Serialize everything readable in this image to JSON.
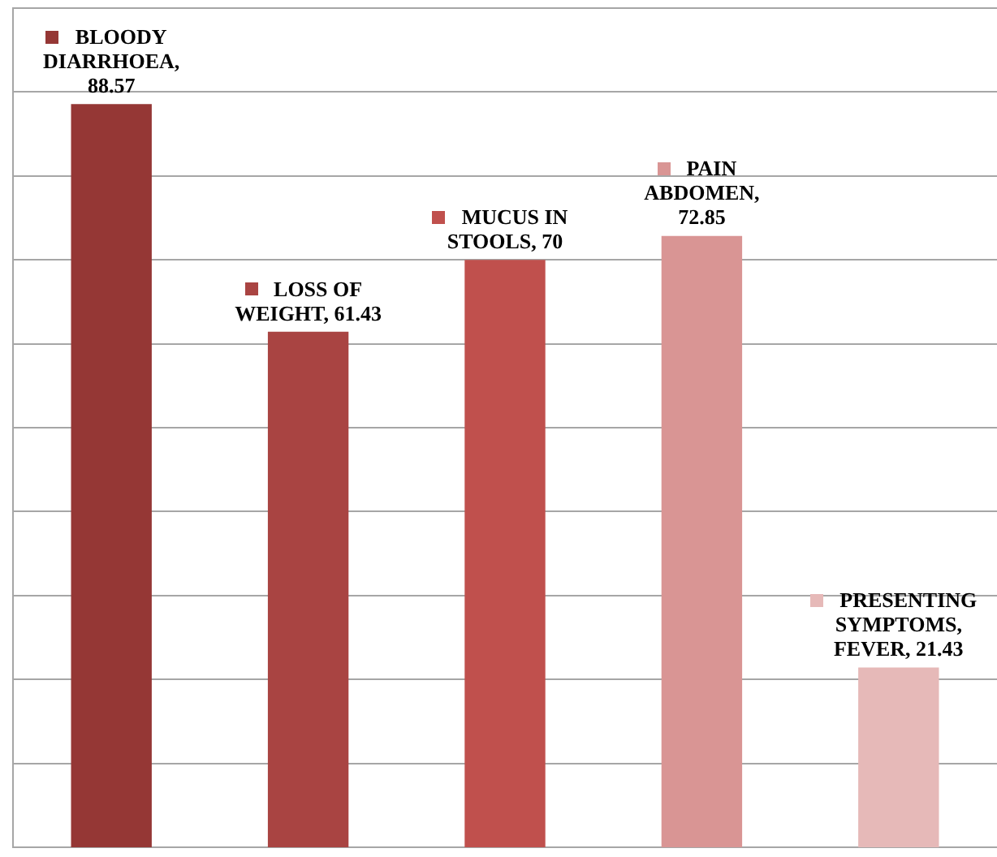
{
  "chart_data": {
    "type": "bar",
    "categories": [
      null,
      null,
      null,
      null,
      null
    ],
    "values": [
      88.57,
      61.43,
      70,
      72.85,
      21.43
    ],
    "colors": [
      "#953735",
      "#a94442",
      "#c0504d",
      "#d99594",
      "#e6b9b8"
    ],
    "ylim": [
      0,
      100
    ],
    "yticks": [
      {
        "value": 10,
        "label": null
      },
      {
        "value": 20,
        "label": null
      },
      {
        "value": 30,
        "label": null
      },
      {
        "value": 40,
        "label": null
      },
      {
        "value": 50,
        "label": null
      },
      {
        "value": 60,
        "label": null
      },
      {
        "value": 70,
        "label": null
      },
      {
        "value": 80,
        "label": null
      },
      {
        "value": 90,
        "label": null
      },
      {
        "value": 100,
        "label": null
      }
    ],
    "value_labels": [
      "BLOODY DIARRHOEA, 88.57",
      "LOSS OF WEIGHT, 61.43",
      "MUCUS IN STOOLS, 70",
      "PAIN ABDOMEN, 72.85",
      "PRESENTING SYMPTOMS, FEVER, 21.43"
    ],
    "grid": "y",
    "tick_labels": false,
    "legend": false
  }
}
